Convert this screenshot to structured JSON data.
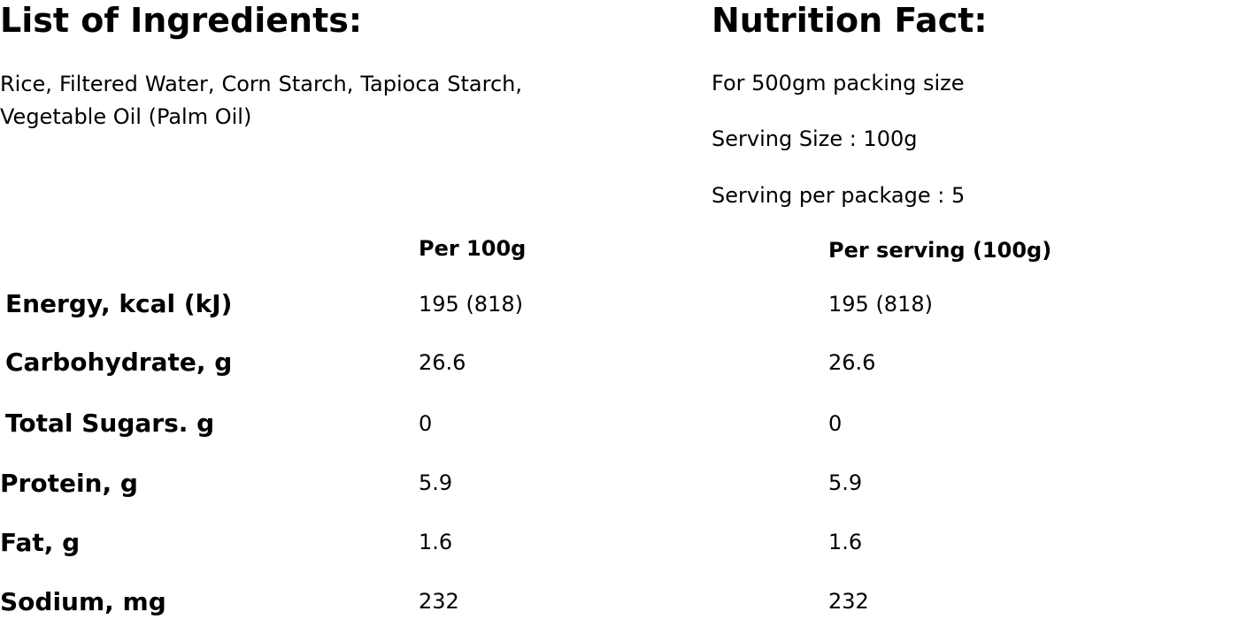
{
  "ingredients": {
    "title": "List of Ingredients:",
    "text": "Rice, Filtered Water, Corn Starch, Tapioca Starch, Vegetable Oil (Palm Oil)"
  },
  "nutrition": {
    "title": "Nutrition Fact:",
    "info": [
      "For 500gm packing size",
      "Serving Size : 100g",
      "Serving per package : 5"
    ],
    "columns": [
      "Per 100g",
      "Per serving (100g)"
    ],
    "rows": [
      {
        "label": "Energy, kcal (kJ)",
        "per100g": "195 (818)",
        "perServing": "195 (818)"
      },
      {
        "label": "Carbohydrate, g",
        "per100g": "26.6",
        "perServing": "26.6"
      },
      {
        "label": "Total Sugars. g",
        "per100g": "0",
        "perServing": "0"
      },
      {
        "label": "Protein, g",
        "per100g": "5.9",
        "perServing": "5.9"
      },
      {
        "label": "Fat, g",
        "per100g": "1.6",
        "perServing": "1.6"
      },
      {
        "label": "Sodium, mg",
        "per100g": "232",
        "perServing": "232"
      }
    ]
  }
}
